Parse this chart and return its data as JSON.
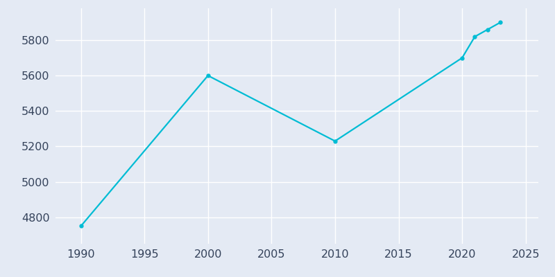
{
  "years": [
    1990,
    2000,
    2010,
    2020,
    2021,
    2022,
    2023
  ],
  "population": [
    4750,
    5600,
    5230,
    5700,
    5820,
    5860,
    5900
  ],
  "line_color": "#00BCD4",
  "marker": "o",
  "marker_size": 3.5,
  "bg_color": "#E4EAF4",
  "plot_bg_color": "#E4EAF4",
  "line_width": 1.6,
  "xlabel": "",
  "ylabel": "",
  "xlim": [
    1988,
    2026
  ],
  "ylim": [
    4650,
    5980
  ],
  "xticks": [
    1990,
    1995,
    2000,
    2005,
    2010,
    2015,
    2020,
    2025
  ],
  "yticks": [
    4800,
    5000,
    5200,
    5400,
    5600,
    5800
  ],
  "grid_color": "#ffffff",
  "tick_color": "#34425a",
  "tick_fontsize": 11.5
}
